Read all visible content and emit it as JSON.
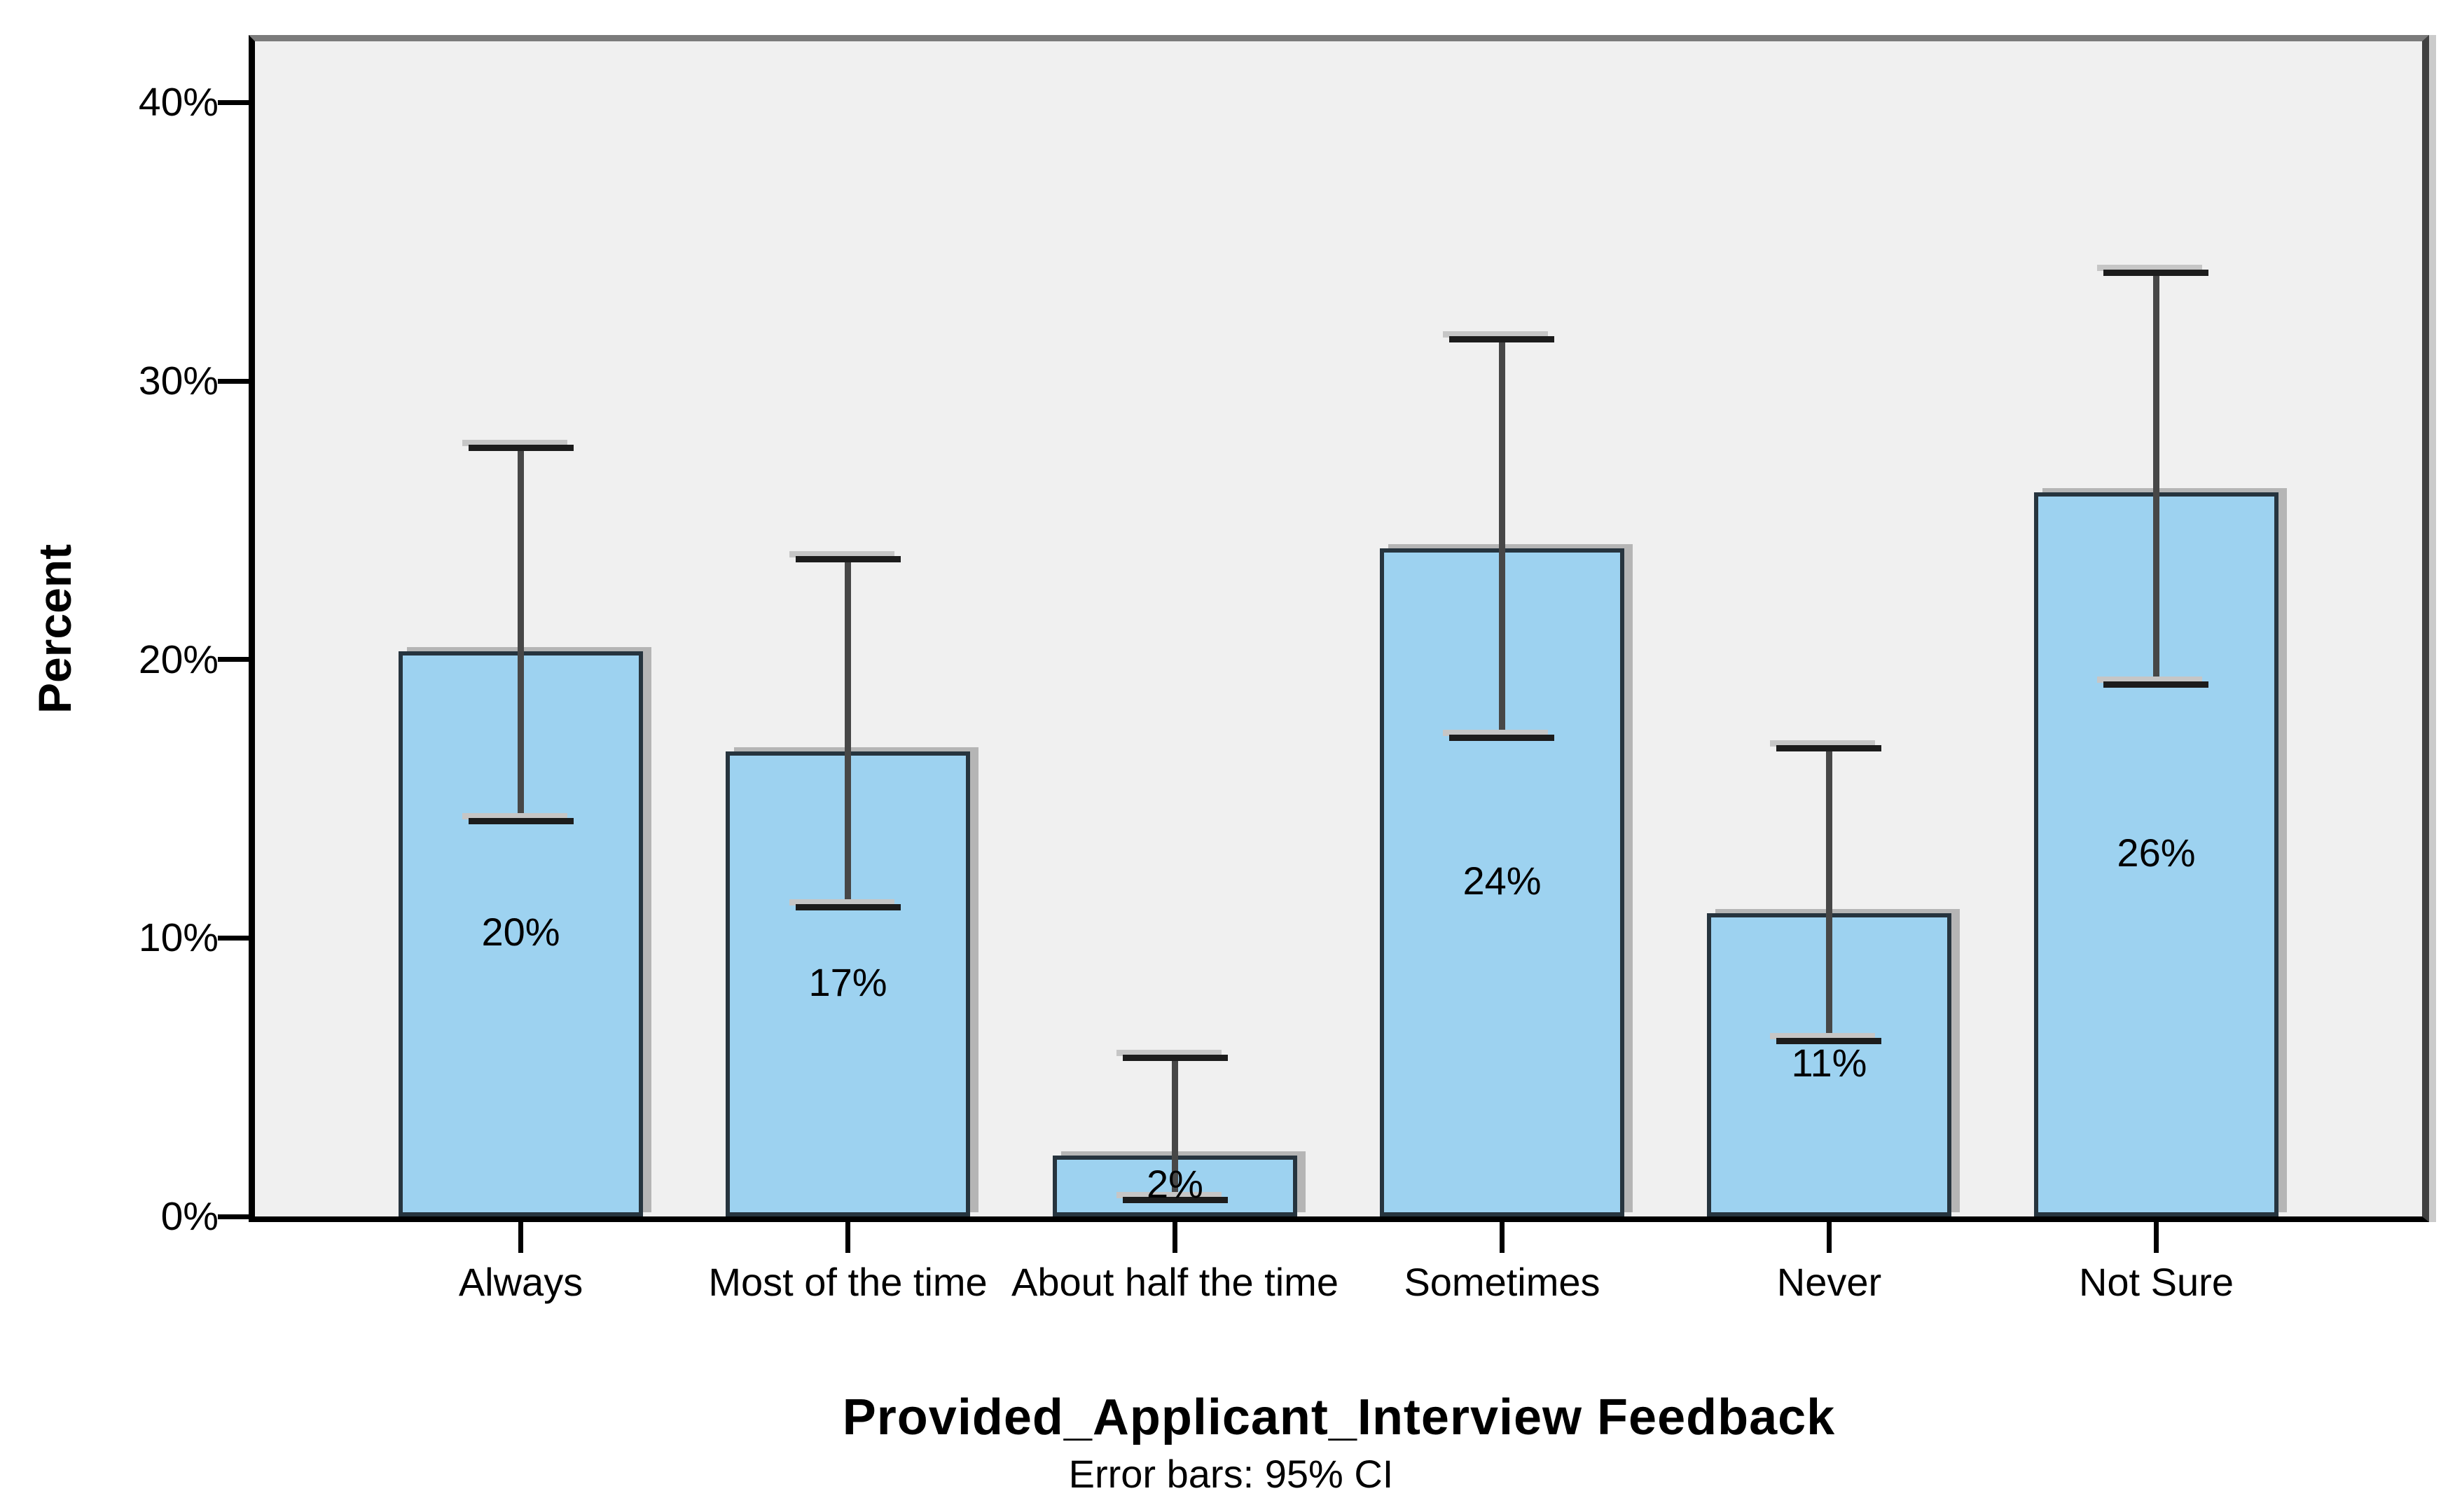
{
  "chart_data": {
    "type": "bar",
    "title": "",
    "xlabel": "Provided_Applicant_Interview Feedback",
    "ylabel": "Percent",
    "caption": "Error bars: 95% CI",
    "categories": [
      "Always",
      "Most of the time",
      "About half the time",
      "Sometimes",
      "Never",
      "Not Sure"
    ],
    "values": [
      20.3,
      16.7,
      2.2,
      24.0,
      10.9,
      26.0
    ],
    "value_labels": [
      "20%",
      "17%",
      "2%",
      "24%",
      "11%",
      "26%"
    ],
    "error_low": [
      14.2,
      11.1,
      0.6,
      17.2,
      6.3,
      19.1
    ],
    "error_high": [
      27.6,
      23.6,
      5.7,
      31.5,
      16.8,
      33.9
    ],
    "y_tick_labels": [
      "0%",
      "10%",
      "20%",
      "30%",
      "40%"
    ],
    "y_tick_values": [
      0,
      10,
      20,
      30,
      40
    ],
    "ylim": [
      0,
      42.2
    ],
    "grid": false,
    "legend": "none",
    "colors": {
      "bar_fill": "#9DD2F0",
      "bar_border": "#26343E",
      "error_bar": "#1C1C1C",
      "error_stem": "#474747",
      "plot_background": "#F0F0F0",
      "figure_background": "#FFFFFF",
      "text": "#000000"
    }
  }
}
